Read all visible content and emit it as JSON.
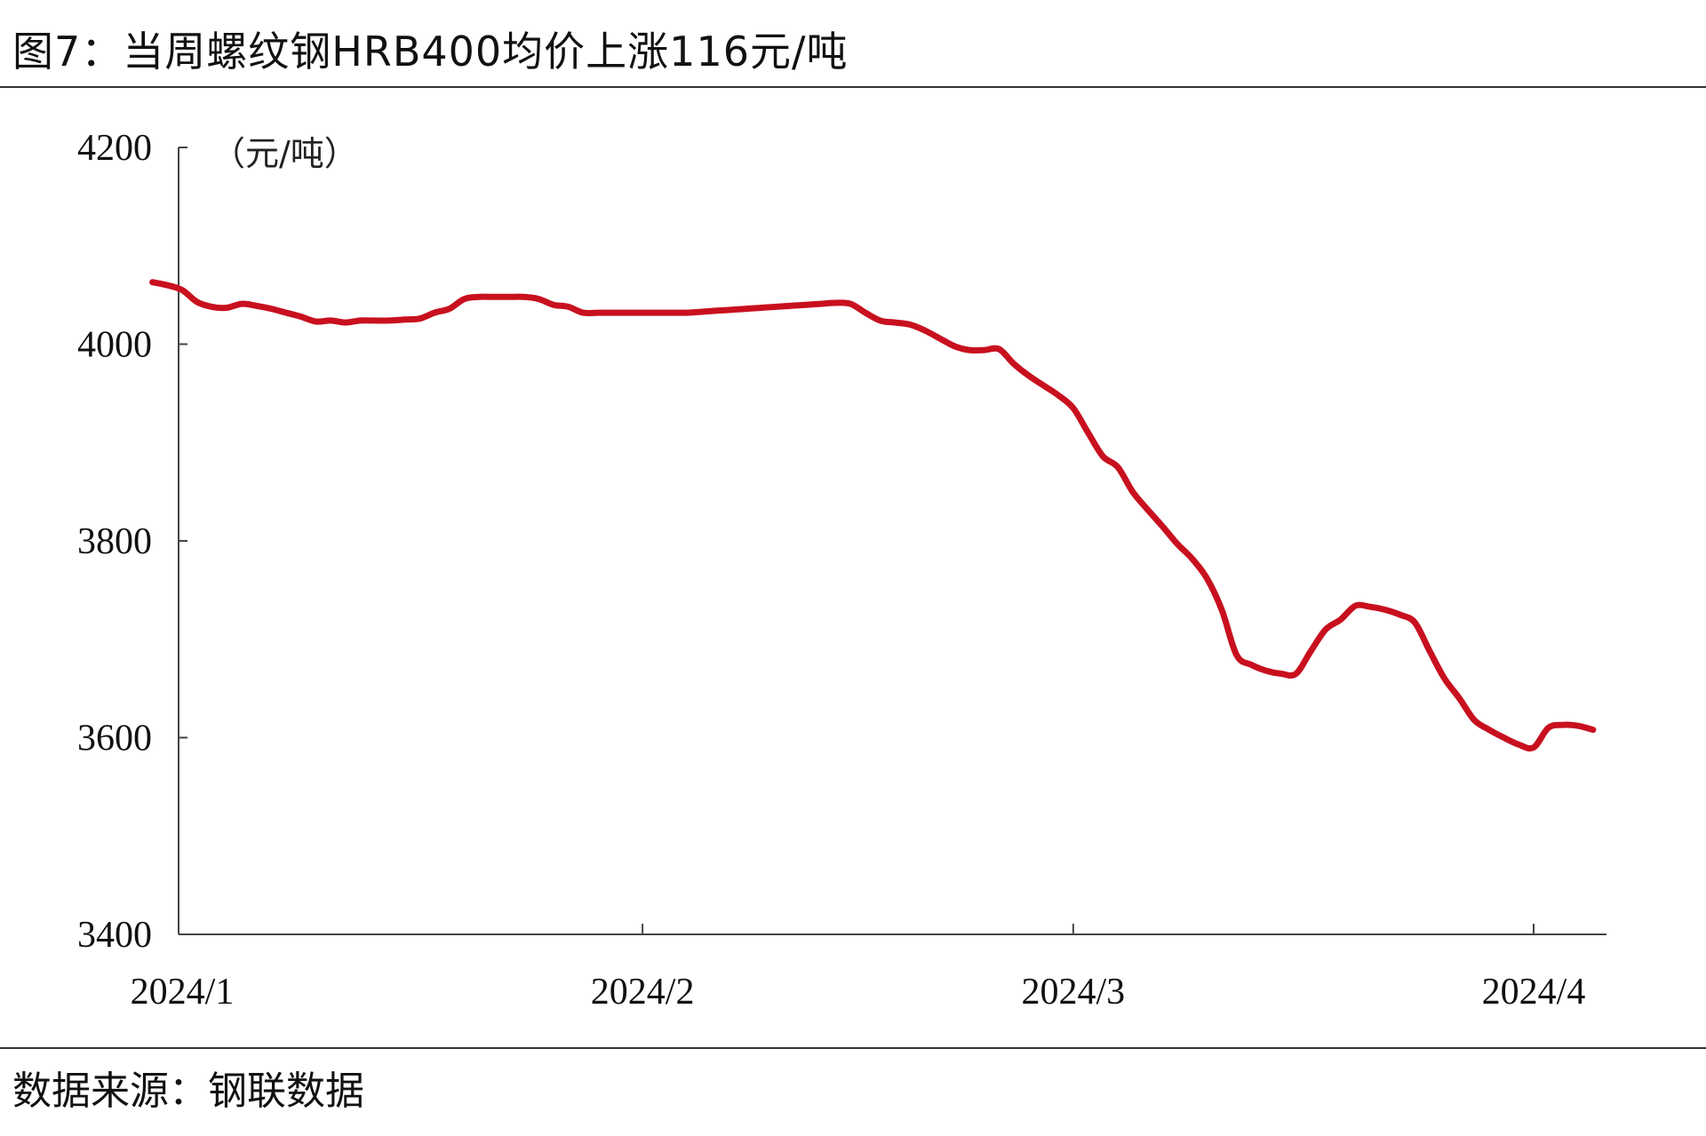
{
  "title": "图7：当周螺纹钢HRB400均价上涨116元/吨",
  "source": "数据来源：钢联数据",
  "chart_data": {
    "type": "line",
    "title": "图7：当周螺纹钢HRB400均价上涨116元/吨",
    "ylabel": "（元/吨）",
    "ylim": [
      3400,
      4200
    ],
    "y_ticks": [
      "4200",
      "4000",
      "3800",
      "3600",
      "3400"
    ],
    "x_ticks": [
      {
        "label": "2024/1",
        "date": "2024-01-01"
      },
      {
        "label": "2024/2",
        "date": "2024-02-01"
      },
      {
        "label": "2024/3",
        "date": "2024-03-01"
      },
      {
        "label": "2024/4",
        "date": "2024-04-01"
      }
    ],
    "x_range": [
      "2023-12-30",
      "2024-04-05"
    ],
    "grid": false,
    "line_color": "#c8101f",
    "series": [
      {
        "points": [
          [
            "2023-12-30",
            4063
          ],
          [
            "2023-12-31",
            4060
          ],
          [
            "2024-01-01",
            4055
          ],
          [
            "2024-01-02",
            4043
          ],
          [
            "2024-01-03",
            4038
          ],
          [
            "2024-01-04",
            4037
          ],
          [
            "2024-01-05",
            4041
          ],
          [
            "2024-01-06",
            4039
          ],
          [
            "2024-01-07",
            4036
          ],
          [
            "2024-01-08",
            4032
          ],
          [
            "2024-01-09",
            4028
          ],
          [
            "2024-01-10",
            4023
          ],
          [
            "2024-01-11",
            4024
          ],
          [
            "2024-01-12",
            4022
          ],
          [
            "2024-01-13",
            4024
          ],
          [
            "2024-01-14",
            4024
          ],
          [
            "2024-01-15",
            4024
          ],
          [
            "2024-01-16",
            4025
          ],
          [
            "2024-01-17",
            4026
          ],
          [
            "2024-01-18",
            4032
          ],
          [
            "2024-01-19",
            4036
          ],
          [
            "2024-01-20",
            4046
          ],
          [
            "2024-01-21",
            4048
          ],
          [
            "2024-01-22",
            4048
          ],
          [
            "2024-01-23",
            4048
          ],
          [
            "2024-01-24",
            4048
          ],
          [
            "2024-01-25",
            4046
          ],
          [
            "2024-01-26",
            4040
          ],
          [
            "2024-01-27",
            4038
          ],
          [
            "2024-01-28",
            4032
          ],
          [
            "2024-01-29",
            4032
          ],
          [
            "2024-01-30",
            4032
          ],
          [
            "2024-01-31",
            4032
          ],
          [
            "2024-02-01",
            4032
          ],
          [
            "2024-02-02",
            4032
          ],
          [
            "2024-02-03",
            4032
          ],
          [
            "2024-02-04",
            4032
          ],
          [
            "2024-02-05",
            4033
          ],
          [
            "2024-02-06",
            4034
          ],
          [
            "2024-02-07",
            4035
          ],
          [
            "2024-02-08",
            4036
          ],
          [
            "2024-02-09",
            4037
          ],
          [
            "2024-02-10",
            4038
          ],
          [
            "2024-02-11",
            4039
          ],
          [
            "2024-02-12",
            4040
          ],
          [
            "2024-02-13",
            4041
          ],
          [
            "2024-02-14",
            4042
          ],
          [
            "2024-02-15",
            4041
          ],
          [
            "2024-02-16",
            4032
          ],
          [
            "2024-02-17",
            4024
          ],
          [
            "2024-02-18",
            4022
          ],
          [
            "2024-02-19",
            4020
          ],
          [
            "2024-02-20",
            4014
          ],
          [
            "2024-02-21",
            4006
          ],
          [
            "2024-02-22",
            3998
          ],
          [
            "2024-02-23",
            3994
          ],
          [
            "2024-02-24",
            3994
          ],
          [
            "2024-02-25",
            3995
          ],
          [
            "2024-02-26",
            3980
          ],
          [
            "2024-02-27",
            3968
          ],
          [
            "2024-02-28",
            3958
          ],
          [
            "2024-02-29",
            3948
          ],
          [
            "2024-03-01",
            3935
          ],
          [
            "2024-03-02",
            3910
          ],
          [
            "2024-03-03",
            3886
          ],
          [
            "2024-03-04",
            3875
          ],
          [
            "2024-03-05",
            3850
          ],
          [
            "2024-03-06",
            3832
          ],
          [
            "2024-03-07",
            3815
          ],
          [
            "2024-03-08",
            3797
          ],
          [
            "2024-03-09",
            3782
          ],
          [
            "2024-03-10",
            3762
          ],
          [
            "2024-03-11",
            3730
          ],
          [
            "2024-03-12",
            3684
          ],
          [
            "2024-03-13",
            3674
          ],
          [
            "2024-03-14",
            3668
          ],
          [
            "2024-03-15",
            3665
          ],
          [
            "2024-03-16",
            3665
          ],
          [
            "2024-03-17",
            3688
          ],
          [
            "2024-03-18",
            3710
          ],
          [
            "2024-03-19",
            3720
          ],
          [
            "2024-03-20",
            3734
          ],
          [
            "2024-03-21",
            3733
          ],
          [
            "2024-03-22",
            3730
          ],
          [
            "2024-03-23",
            3725
          ],
          [
            "2024-03-24",
            3717
          ],
          [
            "2024-03-25",
            3688
          ],
          [
            "2024-03-26",
            3660
          ],
          [
            "2024-03-27",
            3640
          ],
          [
            "2024-03-28",
            3618
          ],
          [
            "2024-03-29",
            3608
          ],
          [
            "2024-03-30",
            3600
          ],
          [
            "2024-03-31",
            3593
          ],
          [
            "2024-04-01",
            3590
          ],
          [
            "2024-04-02",
            3610
          ],
          [
            "2024-04-03",
            3613
          ],
          [
            "2024-04-04",
            3612
          ],
          [
            "2024-04-05",
            3608
          ]
        ]
      }
    ]
  }
}
